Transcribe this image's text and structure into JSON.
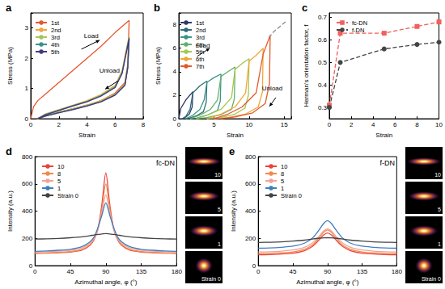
{
  "chart_data": [
    {
      "type": "line",
      "title": "a",
      "x_label": "Strain",
      "y_label": "Stress (MPa)",
      "xlim": [
        0,
        8
      ],
      "xticks": [
        0,
        2,
        4,
        6,
        8
      ],
      "ylim": [
        0,
        3.5
      ],
      "yticks": [
        0,
        1,
        2,
        3
      ],
      "grid": false,
      "legend": "upper left",
      "annotations": [
        "Load",
        "Unload"
      ],
      "series": [
        {
          "name": "1st",
          "color": "#e4572e",
          "x": [
            0,
            0.2,
            0.5,
            1,
            2,
            3,
            4,
            5,
            6,
            7,
            6.9,
            6.7,
            6,
            5,
            4,
            3,
            2,
            1,
            0.4
          ],
          "values": [
            0,
            0.4,
            0.6,
            0.8,
            1.2,
            1.6,
            2.0,
            2.4,
            2.85,
            3.25,
            1.8,
            1.2,
            0.85,
            0.6,
            0.45,
            0.33,
            0.22,
            0.1,
            0
          ]
        },
        {
          "name": "2nd",
          "color": "#f2a541",
          "x": [
            0.5,
            1,
            2,
            3,
            4,
            5,
            6,
            6.5,
            7,
            6.9,
            6.7,
            6,
            5,
            4,
            3,
            2,
            1,
            0.5
          ],
          "values": [
            0,
            0.15,
            0.3,
            0.45,
            0.6,
            0.8,
            1.1,
            1.6,
            2.75,
            1.75,
            1.15,
            0.82,
            0.6,
            0.45,
            0.33,
            0.22,
            0.1,
            0
          ]
        },
        {
          "name": "3rd",
          "color": "#a5c459",
          "x": [
            0.5,
            1,
            2,
            3,
            4,
            5,
            6,
            6.5,
            7,
            6.9,
            6.7,
            6,
            5,
            4,
            3,
            2,
            1,
            0.5
          ],
          "values": [
            0,
            0.14,
            0.29,
            0.44,
            0.58,
            0.78,
            1.07,
            1.55,
            2.7,
            1.72,
            1.13,
            0.8,
            0.58,
            0.44,
            0.32,
            0.21,
            0.09,
            0
          ]
        },
        {
          "name": "4th",
          "color": "#3f8f8f",
          "x": [
            0.5,
            1,
            2,
            3,
            4,
            5,
            6,
            6.5,
            7,
            6.9,
            6.7,
            6,
            5,
            4,
            3,
            2,
            1,
            0.5
          ],
          "values": [
            0,
            0.13,
            0.28,
            0.43,
            0.57,
            0.76,
            1.05,
            1.52,
            2.68,
            1.7,
            1.12,
            0.79,
            0.57,
            0.43,
            0.31,
            0.2,
            0.09,
            0
          ]
        },
        {
          "name": "5th",
          "color": "#453a7d",
          "x": [
            0.5,
            1,
            2,
            3,
            4,
            5,
            6,
            6.5,
            7,
            6.9,
            6.7,
            6,
            5,
            4,
            3,
            2,
            1,
            0.5
          ],
          "values": [
            0,
            0.12,
            0.27,
            0.42,
            0.56,
            0.75,
            1.03,
            1.5,
            2.65,
            1.68,
            1.1,
            0.78,
            0.56,
            0.42,
            0.3,
            0.2,
            0.08,
            0
          ]
        }
      ]
    },
    {
      "type": "line",
      "title": "b",
      "x_label": "Strain",
      "y_label": "Stress (MPa)",
      "xlim": [
        0,
        16
      ],
      "xticks": [
        0,
        5,
        10,
        15
      ],
      "ylim": [
        0,
        9
      ],
      "yticks": [
        0,
        2,
        4,
        6,
        8
      ],
      "grid": false,
      "legend": "upper left",
      "annotations": [
        "Load",
        "Unload"
      ],
      "series": [
        {
          "name": "1st",
          "color": "#2b3a67",
          "x": [
            0,
            0.3,
            1,
            2,
            1.9,
            1.5,
            1,
            0.5
          ],
          "values": [
            0,
            0.9,
            1.6,
            2.3,
            1.0,
            0.4,
            0.15,
            0
          ]
        },
        {
          "name": "2nd",
          "color": "#2f6b78",
          "x": [
            0.5,
            1,
            1.6,
            2,
            3,
            4,
            3.9,
            3.5,
            2.5,
            1.5,
            1
          ],
          "values": [
            0,
            0.2,
            0.8,
            2.2,
            2.8,
            3.2,
            1.4,
            0.6,
            0.25,
            0.05,
            0
          ]
        },
        {
          "name": "3rd",
          "color": "#3a9583",
          "x": [
            1,
            2,
            3,
            3.6,
            4,
            5,
            6,
            5.9,
            5.5,
            4,
            2.5,
            1.6
          ],
          "values": [
            0,
            0.3,
            0.8,
            1.6,
            3.1,
            3.5,
            3.8,
            1.5,
            0.7,
            0.3,
            0.05,
            0
          ]
        },
        {
          "name": "4th",
          "color": "#62b06d",
          "x": [
            1.6,
            3,
            4.5,
            5.5,
            6,
            7,
            8,
            7.9,
            7.5,
            6,
            4,
            2.5
          ],
          "values": [
            0,
            0.3,
            0.8,
            1.6,
            3.6,
            4.0,
            4.4,
            1.7,
            0.8,
            0.35,
            0.1,
            0
          ]
        },
        {
          "name": "5th",
          "color": "#a2c94e",
          "x": [
            2.5,
            4,
            6,
            7.5,
            8,
            9,
            10,
            9.9,
            9.4,
            8,
            6,
            4
          ],
          "values": [
            0,
            0.3,
            0.8,
            1.8,
            4.2,
            4.7,
            5.1,
            2.0,
            0.9,
            0.4,
            0.1,
            0
          ]
        },
        {
          "name": "6th",
          "color": "#efa63a",
          "x": [
            4,
            6,
            8,
            9.5,
            10,
            11,
            12,
            11.9,
            11.3,
            9.5,
            7,
            5
          ],
          "values": [
            0,
            0.4,
            1.0,
            2.2,
            4.9,
            5.4,
            6.0,
            2.3,
            1.0,
            0.4,
            0.1,
            0
          ]
        },
        {
          "name": "7th",
          "color": "#e35a2a",
          "x": [
            5,
            7,
            9,
            11,
            12,
            12.5,
            13,
            12.9,
            12.3,
            10.5,
            8,
            6
          ],
          "values": [
            0,
            0.4,
            1.0,
            2.2,
            5.5,
            6.3,
            7.1,
            3.0,
            1.3,
            0.5,
            0.15,
            0
          ]
        },
        {
          "color": "#8a8a8a",
          "line_style": "dashed",
          "x": [
            12.8,
            13.5,
            14.5,
            15.3
          ],
          "values": [
            6.9,
            7.4,
            7.9,
            8.3
          ]
        }
      ]
    },
    {
      "type": "line",
      "title": "c",
      "x_label": "Strain",
      "y_label": "Herman's orientation factor, f",
      "xlim": [
        0,
        10
      ],
      "xticks": [
        0,
        2,
        4,
        6,
        8,
        10
      ],
      "ylim": [
        0.25,
        0.72
      ],
      "yticks": [
        0.3,
        0.4,
        0.5,
        0.6,
        0.7
      ],
      "grid": false,
      "legend": "upper left",
      "series": [
        {
          "name": "fc-DN",
          "color": "#f0605e",
          "marker": "square",
          "line_style": "dashed",
          "x": [
            0,
            1,
            5,
            8,
            10
          ],
          "values": [
            0.31,
            0.63,
            0.63,
            0.66,
            0.68
          ]
        },
        {
          "name": "f-DN",
          "color": "#444444",
          "marker": "circle",
          "line_style": "dashed",
          "x": [
            0,
            1,
            5,
            8,
            10
          ],
          "values": [
            0.3,
            0.5,
            0.56,
            0.58,
            0.59
          ]
        }
      ]
    },
    {
      "type": "line",
      "title": "d",
      "x_label": "Azimuthal angle, φ (°)",
      "y_label": "Intensity (a.u.)",
      "xlim": [
        0,
        180
      ],
      "xticks": [
        0,
        45,
        90,
        135,
        180
      ],
      "ylim": [
        0,
        800
      ],
      "yticks": [
        0,
        200,
        400,
        600,
        800
      ],
      "grid": false,
      "legend": "upper left",
      "annotations": [
        "fc-DN"
      ],
      "image_labels": [
        "10",
        "5",
        "1",
        "Strain 0"
      ],
      "series": [
        {
          "name": "10",
          "color": "#e8453c",
          "x": [
            0,
            15,
            30,
            45,
            60,
            70,
            75,
            80,
            85,
            90,
            95,
            100,
            105,
            110,
            120,
            135,
            150,
            165,
            180
          ],
          "values": [
            90,
            92,
            95,
            100,
            115,
            150,
            190,
            270,
            450,
            680,
            450,
            270,
            190,
            150,
            115,
            100,
            95,
            92,
            90
          ]
        },
        {
          "name": "8",
          "color": "#f08a4b",
          "x": [
            0,
            15,
            30,
            45,
            60,
            70,
            75,
            80,
            85,
            90,
            95,
            100,
            105,
            110,
            120,
            135,
            150,
            165,
            180
          ],
          "values": [
            92,
            94,
            97,
            103,
            120,
            155,
            195,
            270,
            420,
            600,
            420,
            270,
            195,
            155,
            120,
            103,
            97,
            94,
            92
          ]
        },
        {
          "name": "5",
          "color": "#f4a29a",
          "x": [
            0,
            15,
            30,
            45,
            60,
            70,
            75,
            80,
            85,
            90,
            95,
            100,
            105,
            110,
            120,
            135,
            150,
            165,
            180
          ],
          "values": [
            100,
            102,
            106,
            112,
            130,
            165,
            200,
            270,
            390,
            520,
            390,
            270,
            200,
            165,
            130,
            112,
            106,
            102,
            100
          ]
        },
        {
          "name": "1",
          "color": "#3d7fc0",
          "x": [
            0,
            15,
            30,
            45,
            60,
            70,
            75,
            80,
            85,
            90,
            95,
            100,
            105,
            110,
            120,
            135,
            150,
            165,
            180
          ],
          "values": [
            105,
            108,
            113,
            120,
            140,
            175,
            210,
            280,
            370,
            460,
            370,
            280,
            210,
            175,
            140,
            120,
            113,
            108,
            105
          ]
        },
        {
          "name": "Strain 0",
          "color": "#444444",
          "x": [
            0,
            15,
            30,
            45,
            60,
            70,
            75,
            80,
            85,
            90,
            95,
            100,
            105,
            110,
            120,
            135,
            150,
            165,
            180
          ],
          "values": [
            195,
            197,
            200,
            205,
            212,
            220,
            225,
            229,
            232,
            235,
            232,
            229,
            225,
            220,
            212,
            205,
            200,
            197,
            195
          ]
        }
      ]
    },
    {
      "type": "line",
      "title": "e",
      "x_label": "Azimuthal angle, φ (°)",
      "y_label": "Intensity (a.u.)",
      "xlim": [
        0,
        180
      ],
      "xticks": [
        0,
        45,
        90,
        135,
        180
      ],
      "ylim": [
        0,
        800
      ],
      "yticks": [
        0,
        200,
        400,
        600,
        800
      ],
      "grid": false,
      "legend": "upper left",
      "annotations": [
        "f-DN"
      ],
      "image_labels": [
        "10",
        "5",
        "1",
        "Strain 0"
      ],
      "series": [
        {
          "name": "10",
          "color": "#e8453c",
          "x": [
            0,
            15,
            30,
            45,
            60,
            70,
            75,
            80,
            85,
            90,
            95,
            100,
            105,
            110,
            120,
            135,
            150,
            165,
            180
          ],
          "values": [
            80,
            82,
            86,
            92,
            110,
            140,
            165,
            195,
            225,
            240,
            225,
            195,
            165,
            140,
            110,
            92,
            86,
            82,
            80
          ]
        },
        {
          "name": "8",
          "color": "#f08a4b",
          "x": [
            0,
            15,
            30,
            45,
            60,
            70,
            75,
            80,
            85,
            90,
            95,
            100,
            105,
            110,
            120,
            135,
            150,
            165,
            180
          ],
          "values": [
            88,
            90,
            94,
            101,
            120,
            150,
            178,
            210,
            245,
            262,
            245,
            210,
            178,
            150,
            120,
            101,
            94,
            90,
            88
          ]
        },
        {
          "name": "5",
          "color": "#f4a29a",
          "x": [
            0,
            15,
            30,
            45,
            60,
            70,
            75,
            80,
            85,
            90,
            95,
            100,
            105,
            110,
            120,
            135,
            150,
            165,
            180
          ],
          "values": [
            100,
            102,
            107,
            115,
            135,
            165,
            192,
            222,
            255,
            270,
            255,
            222,
            192,
            165,
            135,
            115,
            107,
            102,
            100
          ]
        },
        {
          "name": "1",
          "color": "#3d7fc0",
          "x": [
            0,
            15,
            30,
            45,
            60,
            70,
            75,
            80,
            85,
            90,
            95,
            100,
            105,
            110,
            120,
            135,
            150,
            165,
            180
          ],
          "values": [
            128,
            130,
            135,
            143,
            165,
            200,
            232,
            270,
            310,
            330,
            310,
            270,
            232,
            200,
            165,
            143,
            135,
            130,
            128
          ]
        },
        {
          "name": "Strain 0",
          "color": "#444444",
          "x": [
            0,
            15,
            30,
            45,
            60,
            70,
            75,
            80,
            85,
            90,
            95,
            100,
            105,
            110,
            120,
            135,
            150,
            165,
            180
          ],
          "values": [
            170,
            172,
            175,
            180,
            187,
            195,
            199,
            202,
            204,
            205,
            204,
            202,
            199,
            195,
            187,
            180,
            175,
            172,
            170
          ]
        }
      ]
    }
  ]
}
